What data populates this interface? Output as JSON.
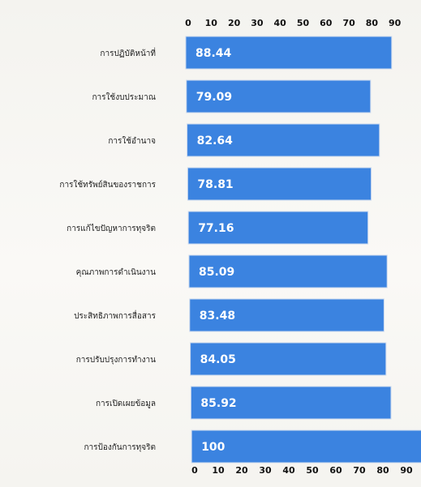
{
  "chart_data": {
    "type": "bar",
    "orientation": "horizontal",
    "categories": [
      "การปฏิบัติหน้าที่",
      "การใช้งบประมาณ",
      "การใช้อำนาจ",
      "การใช้ทรัพย์สินของราชการ",
      "การแก้ไขปัญหาการทุจริต",
      "คุณภาพการดำเนินงาน",
      "ประสิทธิภาพการสื่อสาร",
      "การปรับปรุงการทำงาน",
      "การเปิดเผยข้อมูล",
      "การป้องกันการทุจริต"
    ],
    "values": [
      88.44,
      79.09,
      82.64,
      78.81,
      77.16,
      85.09,
      83.48,
      84.05,
      85.92,
      100
    ],
    "value_labels": [
      "88.44",
      "79.09",
      "82.64",
      "78.81",
      "77.16",
      "85.09",
      "83.48",
      "84.05",
      "85.92",
      "100"
    ],
    "xticks": [
      "0",
      "10",
      "20",
      "30",
      "40",
      "50",
      "60",
      "70",
      "80",
      "90"
    ],
    "xlim": [
      0,
      100
    ],
    "axis_positions": [
      "top",
      "bottom"
    ],
    "grid": false,
    "legend": "none",
    "bar_color": "#3b83e0"
  }
}
